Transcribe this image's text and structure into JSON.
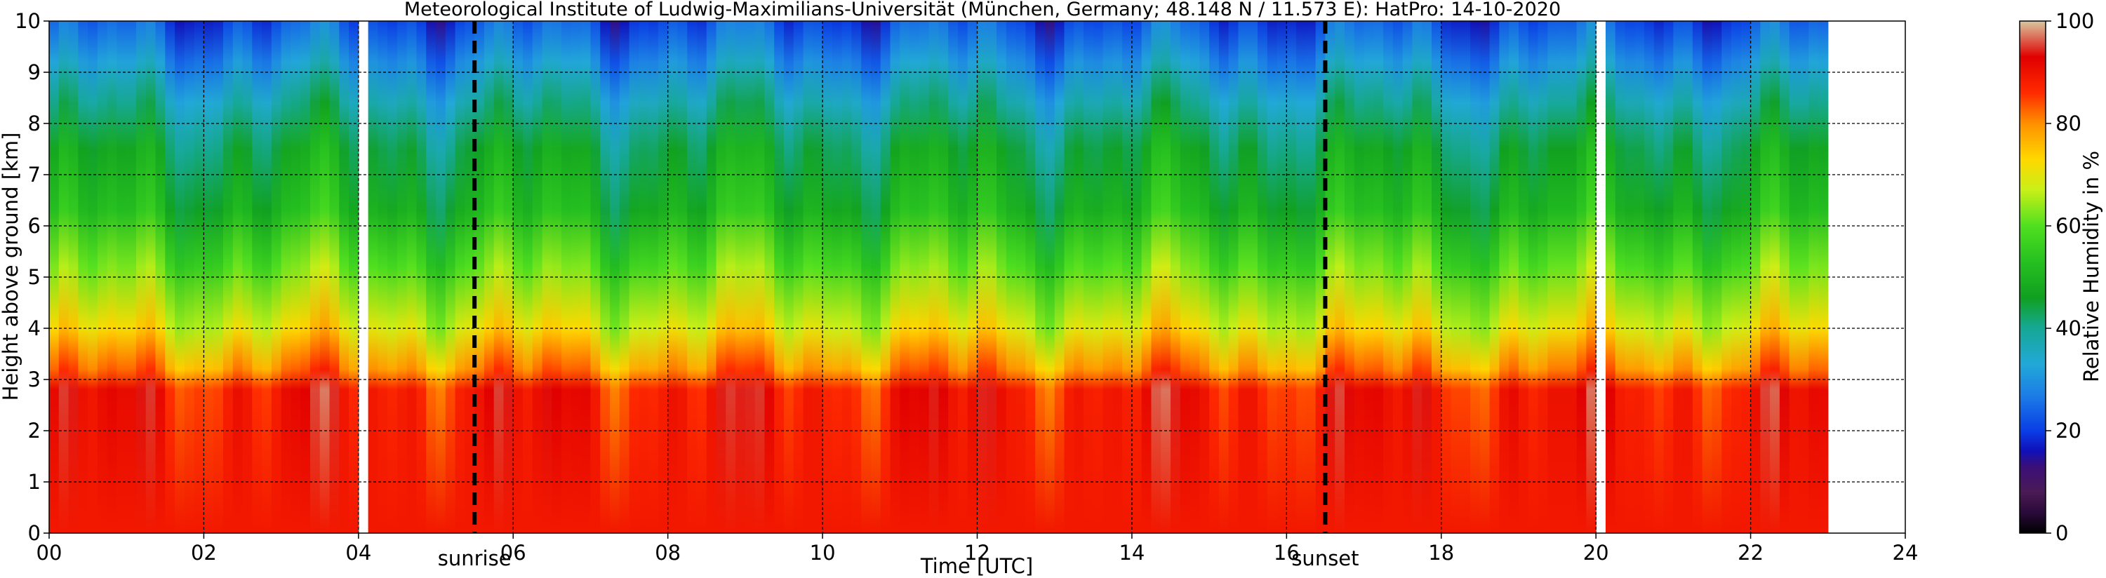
{
  "chart_data": {
    "type": "heatmap",
    "title": "Meteorological Institute of Ludwig-Maximilians-Universität (München, Germany; 48.148 N / 11.573 E):    HatPro: 14-10-2020",
    "xlabel": "Time [UTC]",
    "ylabel": "Height above ground [km]",
    "xlim": [
      0,
      24
    ],
    "ylim": [
      0,
      10
    ],
    "x_ticks": [
      0,
      2,
      4,
      6,
      8,
      10,
      12,
      14,
      16,
      18,
      20,
      22,
      24
    ],
    "x_tick_labels": [
      "00",
      "02",
      "04",
      "06",
      "08",
      "10",
      "12",
      "14",
      "16",
      "18",
      "20",
      "22",
      "24"
    ],
    "y_ticks": [
      0,
      1,
      2,
      3,
      4,
      5,
      6,
      7,
      8,
      9,
      10
    ],
    "y_tick_labels": [
      "0",
      "1",
      "2",
      "3",
      "4",
      "5",
      "6",
      "7",
      "8",
      "9",
      "10"
    ],
    "grid": true,
    "data_end_hour": 23.0,
    "data_gaps_hours": [
      4.05,
      20.05
    ],
    "annotations": [
      {
        "label": "sunrise",
        "x": 5.5,
        "style": "dashed"
      },
      {
        "label": "sunset",
        "x": 16.5,
        "style": "dashed"
      }
    ],
    "colorbar": {
      "label": "Relative Humidity in %",
      "range": [
        0,
        100
      ],
      "ticks": [
        0,
        20,
        40,
        60,
        80,
        100
      ],
      "tick_labels": [
        "0",
        "20",
        "40",
        "60",
        "80",
        "100"
      ],
      "colors": [
        {
          "v": 0,
          "c": "#000000"
        },
        {
          "v": 4,
          "c": "#2a0a3a"
        },
        {
          "v": 8,
          "c": "#4a1a55"
        },
        {
          "v": 13,
          "c": "#3a0f78"
        },
        {
          "v": 16,
          "c": "#1010b8"
        },
        {
          "v": 20,
          "c": "#0a3ee6"
        },
        {
          "v": 27,
          "c": "#1c7ee6"
        },
        {
          "v": 33,
          "c": "#22a8d8"
        },
        {
          "v": 40,
          "c": "#16a895"
        },
        {
          "v": 46,
          "c": "#10a020"
        },
        {
          "v": 53,
          "c": "#26c020"
        },
        {
          "v": 60,
          "c": "#50e020"
        },
        {
          "v": 67,
          "c": "#c8f018"
        },
        {
          "v": 73,
          "c": "#ffd800"
        },
        {
          "v": 80,
          "c": "#ff9000"
        },
        {
          "v": 86,
          "c": "#ff2a00"
        },
        {
          "v": 93,
          "c": "#e00000"
        },
        {
          "v": 100,
          "c": "#d8c8a0"
        }
      ]
    },
    "profile_humidity_by_height_km": [
      {
        "h": 0.0,
        "rh": 89
      },
      {
        "h": 2.8,
        "rh": 89
      },
      {
        "h": 3.2,
        "rh": 80
      },
      {
        "h": 4.0,
        "rh": 70
      },
      {
        "h": 5.2,
        "rh": 60
      },
      {
        "h": 6.3,
        "rh": 50
      },
      {
        "h": 7.5,
        "rh": 45
      },
      {
        "h": 8.4,
        "rh": 38
      },
      {
        "h": 9.2,
        "rh": 30
      },
      {
        "h": 10.0,
        "rh": 22
      }
    ]
  }
}
